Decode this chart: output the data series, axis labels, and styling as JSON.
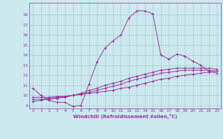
{
  "xlabel": "Windchill (Refroidissement éolien,°C)",
  "xlim": [
    -0.5,
    23.5
  ],
  "ylim": [
    8.7,
    19.2
  ],
  "xticks": [
    0,
    1,
    2,
    3,
    4,
    5,
    6,
    7,
    8,
    9,
    10,
    11,
    12,
    13,
    14,
    15,
    16,
    17,
    18,
    19,
    20,
    21,
    22,
    23
  ],
  "yticks": [
    9,
    10,
    11,
    12,
    13,
    14,
    15,
    16,
    17,
    18
  ],
  "bg_color": "#cce9f0",
  "line_color": "#993399",
  "grid_color": "#aacccc",
  "curves": [
    {
      "x": [
        0,
        1,
        2,
        3,
        4,
        5,
        6,
        7,
        8,
        9,
        10,
        11,
        12,
        13,
        14,
        15,
        16,
        17,
        18,
        19,
        20,
        21,
        22,
        23
      ],
      "y": [
        10.7,
        10.0,
        9.5,
        9.3,
        9.3,
        8.9,
        9.0,
        11.1,
        13.3,
        14.7,
        15.4,
        16.0,
        17.7,
        18.4,
        18.4,
        18.1,
        14.0,
        13.6,
        14.1,
        13.9,
        13.4,
        13.0,
        12.4,
        12.2
      ]
    },
    {
      "x": [
        0,
        1,
        2,
        3,
        4,
        5,
        6,
        7,
        8,
        9,
        10,
        11,
        12,
        13,
        14,
        15,
        16,
        17,
        18,
        19,
        20,
        21,
        22,
        23
      ],
      "y": [
        9.8,
        9.8,
        9.8,
        9.9,
        9.9,
        10.0,
        10.1,
        10.2,
        10.3,
        10.4,
        10.5,
        10.7,
        10.8,
        11.0,
        11.2,
        11.4,
        11.6,
        11.7,
        11.9,
        12.0,
        12.1,
        12.2,
        12.3,
        12.4
      ]
    },
    {
      "x": [
        0,
        1,
        2,
        3,
        4,
        5,
        6,
        7,
        8,
        9,
        10,
        11,
        12,
        13,
        14,
        15,
        16,
        17,
        18,
        19,
        20,
        21,
        22,
        23
      ],
      "y": [
        9.6,
        9.6,
        9.7,
        9.8,
        9.9,
        10.0,
        10.1,
        10.3,
        10.5,
        10.7,
        10.9,
        11.1,
        11.4,
        11.6,
        11.8,
        12.0,
        12.2,
        12.3,
        12.4,
        12.5,
        12.5,
        12.5,
        12.5,
        12.4
      ]
    },
    {
      "x": [
        0,
        1,
        2,
        3,
        4,
        5,
        6,
        7,
        8,
        9,
        10,
        11,
        12,
        13,
        14,
        15,
        16,
        17,
        18,
        19,
        20,
        21,
        22,
        23
      ],
      "y": [
        9.4,
        9.5,
        9.6,
        9.7,
        9.8,
        10.0,
        10.2,
        10.5,
        10.7,
        11.0,
        11.2,
        11.4,
        11.7,
        11.9,
        12.1,
        12.3,
        12.5,
        12.6,
        12.7,
        12.7,
        12.7,
        12.7,
        12.7,
        12.6
      ]
    }
  ]
}
